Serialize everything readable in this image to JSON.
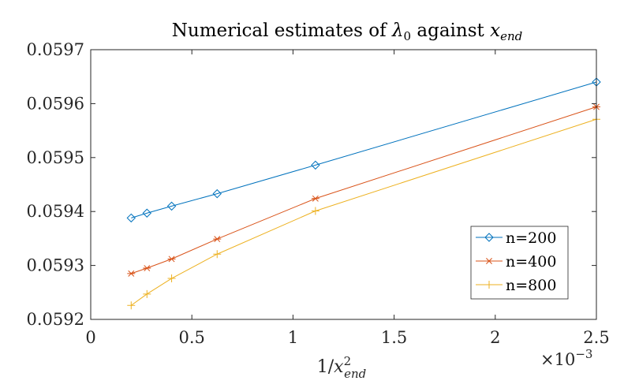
{
  "chart_data": {
    "type": "line",
    "title_parts": [
      "Numerical estimates of ",
      "λ",
      "0",
      " against ",
      "x",
      "end"
    ],
    "xlabel_parts": [
      "1/",
      "x",
      "2",
      "end"
    ],
    "x_exponent": "×10",
    "x_exponent_power": "−3",
    "xlim": [
      0,
      0.0025
    ],
    "ylim": [
      0.0592,
      0.0597
    ],
    "x_ticks": [
      0,
      0.0005,
      0.001,
      0.0015,
      0.002,
      0.0025
    ],
    "x_tick_labels": [
      "0",
      "0.5",
      "1",
      "1.5",
      "2",
      "2.5"
    ],
    "y_ticks": [
      0.0592,
      0.0593,
      0.0594,
      0.0595,
      0.0596,
      0.0597
    ],
    "y_tick_labels": [
      "0.0592",
      "0.0593",
      "0.0594",
      "0.0595",
      "0.0596",
      "0.0597"
    ],
    "grid": false,
    "legend_position": "bottom-right",
    "x": [
      0.0002,
      0.000278,
      0.0004,
      0.000625,
      0.001111,
      0.0025
    ],
    "series": [
      {
        "name": "n=200",
        "marker": "diamond",
        "color": "#0072BD",
        "values": [
          0.059388,
          0.059397,
          0.05941,
          0.059433,
          0.059486,
          0.05964
        ]
      },
      {
        "name": "n=400",
        "marker": "asterisk",
        "color": "#D95319",
        "values": [
          0.059285,
          0.059295,
          0.059312,
          0.059349,
          0.059424,
          0.059594
        ]
      },
      {
        "name": "n=800",
        "marker": "plus",
        "color": "#EDB120",
        "values": [
          0.059226,
          0.059247,
          0.059276,
          0.059321,
          0.059401,
          0.059571
        ]
      }
    ]
  }
}
